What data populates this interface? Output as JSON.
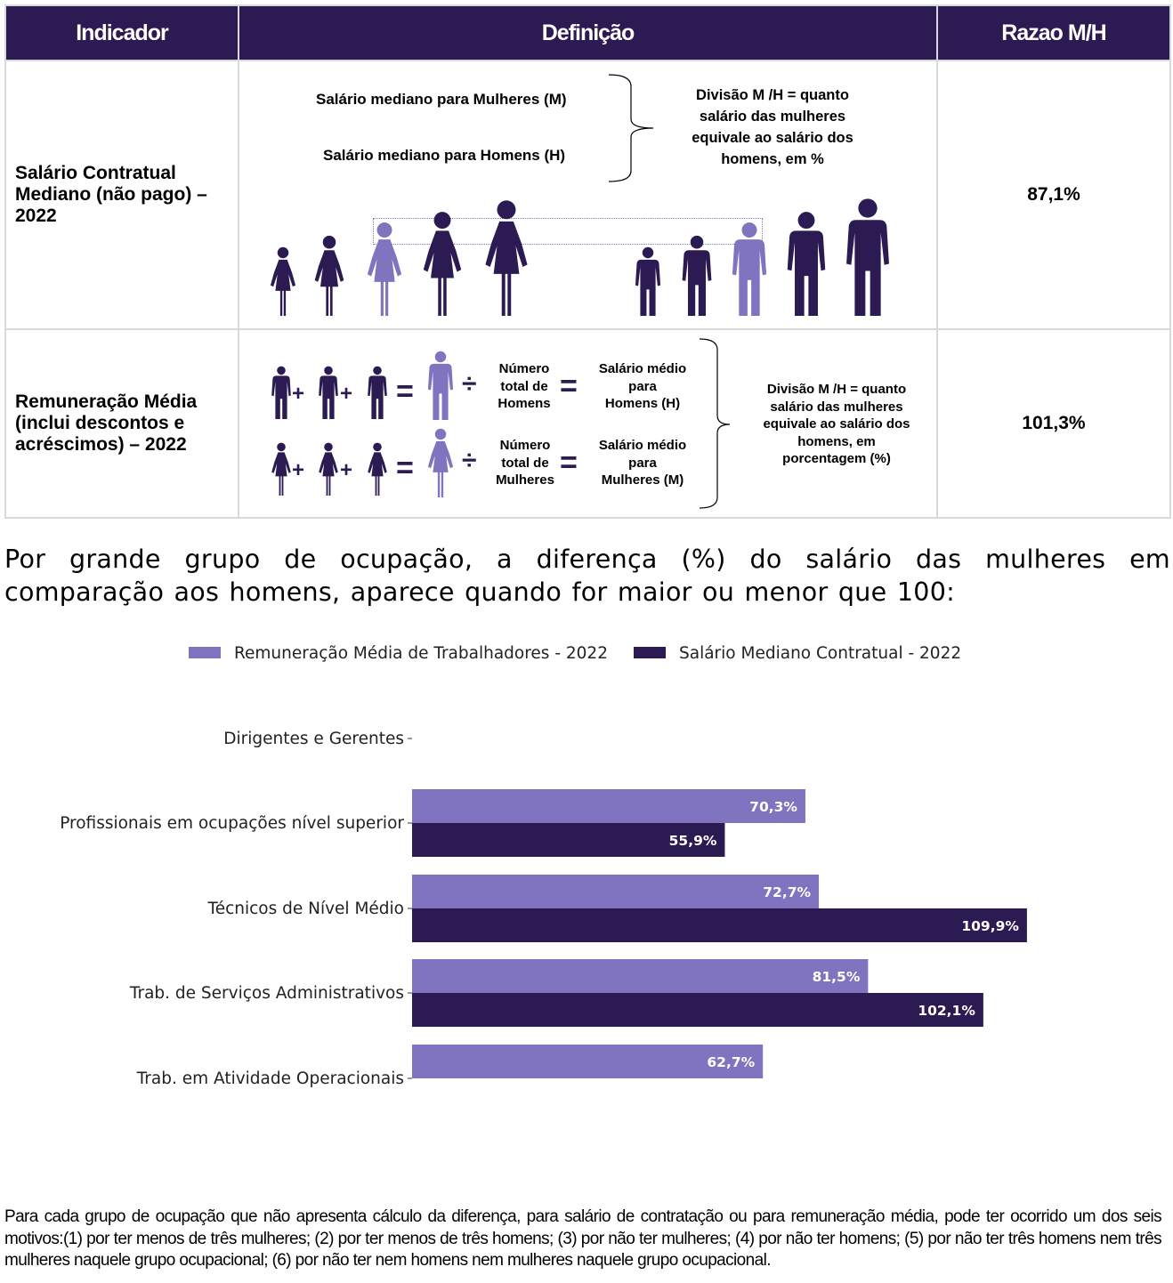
{
  "colors": {
    "primary": "#2c1b52",
    "accent": "#8073bf",
    "grid": "#d9d9d9"
  },
  "table": {
    "headers": {
      "indicator": "Indicador",
      "definition": "Definição",
      "ratio": "Razao M/H"
    },
    "rows": [
      {
        "indicator_lines": [
          "Salário Contratual",
          "Mediano (não pago) –",
          "2022"
        ],
        "definition": {
          "women_label": "Salário mediano para Mulheres (M)",
          "men_label": "Salário mediano para Homens (H)",
          "division_lines": [
            "Divisão M /H = quanto",
            "salário das mulheres",
            "equivale ao salário dos",
            "homens, em %"
          ],
          "icons": [
            "woman-icon",
            "man-icon"
          ]
        },
        "ratio": "87,1%"
      },
      {
        "indicator_lines": [
          "Remuneração Média",
          "(inclui descontos e",
          "acréscimos) – 2022"
        ],
        "definition": {
          "men_count_lines": [
            "Número",
            "total de",
            "Homens"
          ],
          "men_avg_lines": [
            "Salário médio",
            "para",
            "Homens (H)"
          ],
          "women_count_lines": [
            "Número",
            "total de",
            "Mulheres"
          ],
          "women_avg_lines": [
            "Salário médio",
            "para",
            "Mulheres (M)"
          ],
          "division_lines": [
            "Divisão M /H = quanto",
            "salário das mulheres",
            "equivale ao salário dos",
            "homens, em",
            "porcentagem (%)"
          ],
          "operators": {
            "plus": "+",
            "equals": "=",
            "divide": "÷"
          }
        },
        "ratio": "101,3%"
      }
    ]
  },
  "heading": "Por grande grupo de ocupação, a diferença (%) do salário das mulheres em comparação aos homens, aparece quando for maior ou menor que 100:",
  "chart_data": {
    "type": "bar",
    "orientation": "horizontal",
    "legend_position": "top-center",
    "categories": [
      "Dirigentes e Gerentes",
      "Profissionais em ocupações nível superior",
      "Técnicos de Nível Médio",
      "Trab. de Serviços Administrativos",
      "Trab. em Atividade Operacionais"
    ],
    "series": [
      {
        "name": "Remuneração Média de Trabalhadores - 2022",
        "color": "#8073bf",
        "values": [
          null,
          70.3,
          72.7,
          81.5,
          62.7
        ],
        "labels": [
          "",
          "70,3%",
          "72,7%",
          "81,5%",
          "62,7%"
        ]
      },
      {
        "name": "Salário Mediano Contratual - 2022",
        "color": "#2c1b52",
        "values": [
          null,
          55.9,
          109.9,
          102.1,
          null
        ],
        "labels": [
          "",
          "55,9%",
          "109,9%",
          "102,1%",
          ""
        ]
      }
    ],
    "xlim": [
      0,
      136
    ],
    "grid": false,
    "xaxis_visible": false
  },
  "footnote": "Para cada grupo de ocupação que não apresenta cálculo da diferença, para salário de contratação ou para remuneração média, pode ter ocorrido um dos seis motivos:(1) por ter menos de três mulheres; (2) por ter menos de três homens; (3) por não ter mulheres; (4) por não ter homens; (5) por não ter três homens nem três mulheres naquele grupo ocupacional; (6) por não ter nem homens nem mulheres naquele grupo ocupacional."
}
